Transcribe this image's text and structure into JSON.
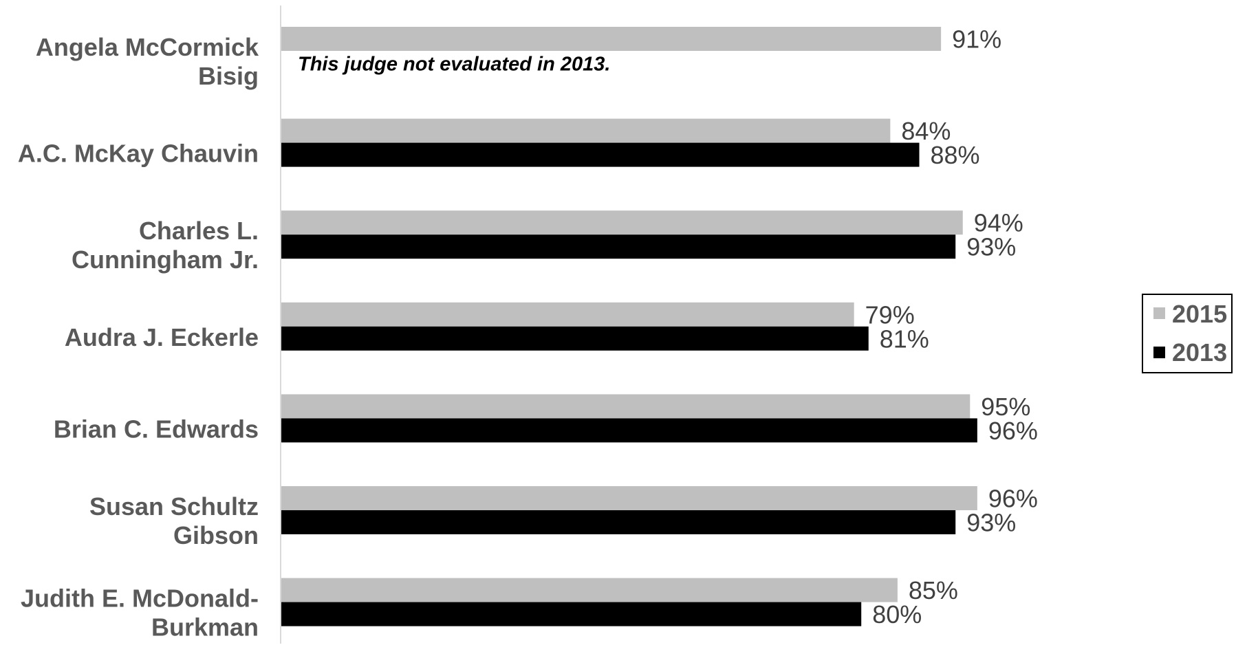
{
  "chart_data": {
    "type": "bar",
    "orientation": "horizontal",
    "categories": [
      [
        "Angela McCormick",
        "Bisig"
      ],
      [
        "A.C. McKay Chauvin"
      ],
      [
        "Charles L.",
        "Cunningham Jr."
      ],
      [
        "Audra J. Eckerle"
      ],
      [
        "Brian C. Edwards"
      ],
      [
        "Susan Schultz",
        "Gibson"
      ],
      [
        "Judith E. McDonald-",
        "Burkman"
      ]
    ],
    "series": [
      {
        "name": "2015",
        "color": "#bfbfbf",
        "values": [
          91,
          84,
          94,
          79,
          95,
          96,
          85
        ],
        "labels": [
          "91%",
          "84%",
          "94%",
          "79%",
          "95%",
          "96%",
          "85%"
        ]
      },
      {
        "name": "2013",
        "color": "#000000",
        "values": [
          null,
          88,
          93,
          81,
          96,
          93,
          80
        ],
        "labels": [
          "",
          "88%",
          "93%",
          "81%",
          "96%",
          "93%",
          "80%"
        ]
      }
    ],
    "annotations": [
      {
        "category_index": 0,
        "series": "2013",
        "text": "This judge not evaluated in 2013."
      }
    ],
    "xlim": [
      0,
      100
    ],
    "grid": false,
    "legend_position": "right"
  }
}
